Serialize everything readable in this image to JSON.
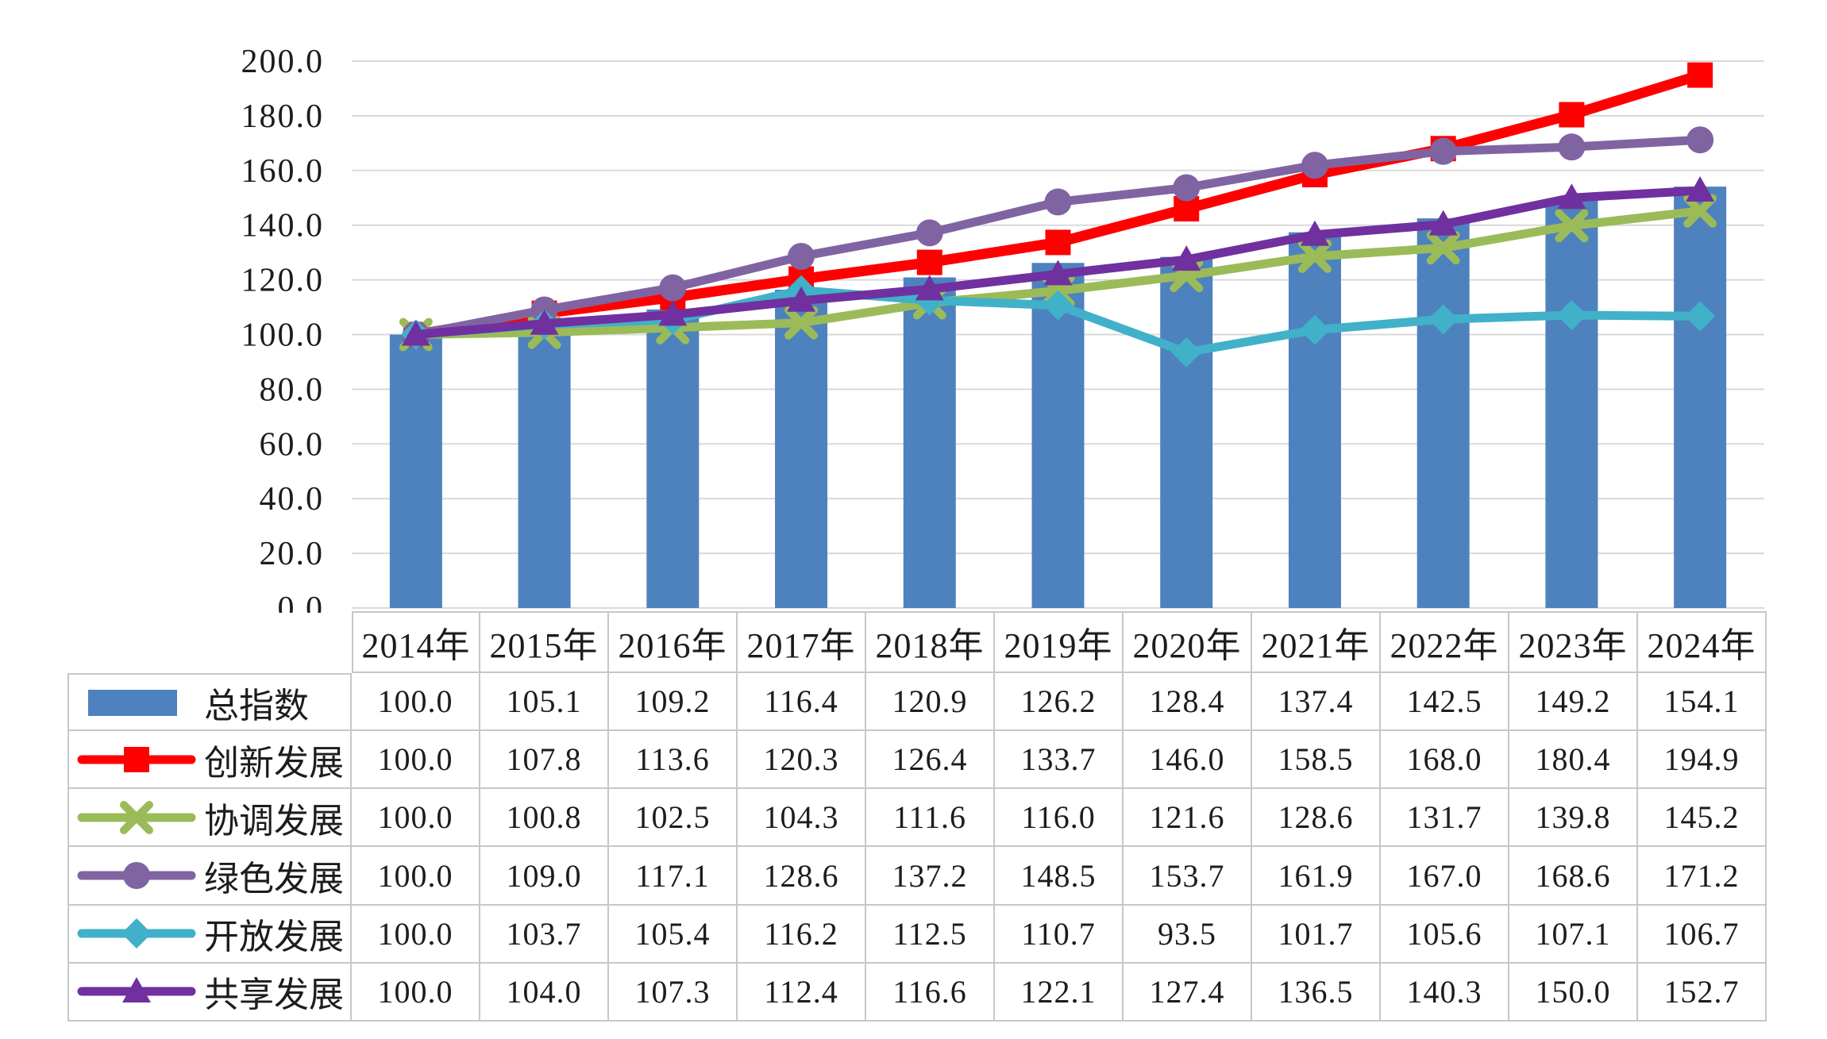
{
  "chart_data": {
    "type": "bar+line combo with data table",
    "title": "",
    "xlabel": "",
    "ylabel": "",
    "categories": [
      "2014年",
      "2015年",
      "2016年",
      "2017年",
      "2018年",
      "2019年",
      "2020年",
      "2021年",
      "2022年",
      "2023年",
      "2024年"
    ],
    "y_axis": {
      "min": 0,
      "max": 200,
      "step": 20,
      "tick_labels": [
        "0.0",
        "20.0",
        "40.0",
        "60.0",
        "80.0",
        "100.0",
        "120.0",
        "140.0",
        "160.0",
        "180.0",
        "200.0"
      ]
    },
    "grid": "horizontal-on",
    "legend_position": "table-left-column",
    "value_format": "one-decimal",
    "series": [
      {
        "name": "总指数",
        "type": "bar",
        "marker": "none",
        "color": "#4d82be",
        "values": [
          100.0,
          105.1,
          109.2,
          116.4,
          120.9,
          126.2,
          128.4,
          137.4,
          142.5,
          149.2,
          154.1
        ]
      },
      {
        "name": "创新发展",
        "type": "line",
        "marker": "square",
        "color": "#fe0000",
        "values": [
          100.0,
          107.8,
          113.6,
          120.3,
          126.4,
          133.7,
          146.0,
          158.5,
          168.0,
          180.4,
          194.9
        ]
      },
      {
        "name": "协调发展",
        "type": "line",
        "marker": "x",
        "color": "#9bbb59",
        "values": [
          100.0,
          100.8,
          102.5,
          104.3,
          111.6,
          116.0,
          121.6,
          128.6,
          131.7,
          139.8,
          145.2
        ]
      },
      {
        "name": "绿色发展",
        "type": "line",
        "marker": "circle",
        "color": "#8064a2",
        "values": [
          100.0,
          109.0,
          117.1,
          128.6,
          137.2,
          148.5,
          153.7,
          161.9,
          167.0,
          168.6,
          171.2
        ]
      },
      {
        "name": "开放发展",
        "type": "line",
        "marker": "diamond",
        "color": "#40b1c8",
        "values": [
          100.0,
          103.7,
          105.4,
          116.2,
          112.5,
          110.7,
          93.5,
          101.7,
          105.6,
          107.1,
          106.7
        ]
      },
      {
        "name": "共享发展",
        "type": "line",
        "marker": "triangle",
        "color": "#7030a0",
        "values": [
          100.0,
          104.0,
          107.3,
          112.4,
          116.6,
          122.1,
          127.4,
          136.5,
          140.3,
          150.0,
          152.7
        ]
      }
    ],
    "colors": {
      "gridline": "#d9d9d9",
      "table_border": "#c7c7c7",
      "text": "#1c1c1c",
      "background": "#ffffff"
    }
  }
}
